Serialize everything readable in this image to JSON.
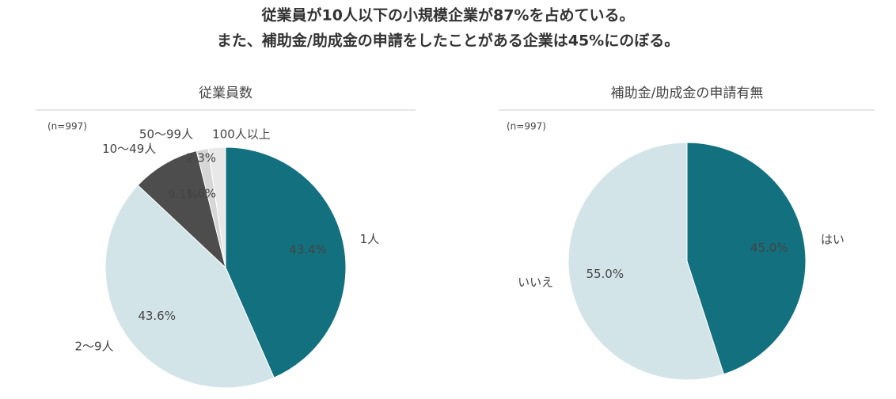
{
  "title": [
    "従業員が10人以下の小規模企業が87%を占めている。",
    "また、補助金/助成金の申請をしたことがある企業は45%にのぼる。"
  ],
  "chart_data": [
    {
      "type": "pie",
      "title": "従業員数",
      "note": "(n=997)",
      "categories": [
        "1人",
        "2〜9人",
        "10〜49人",
        "50〜99人",
        "100人以上"
      ],
      "values": [
        43.4,
        43.6,
        9.1,
        1.6,
        2.3
      ],
      "value_labels": [
        "43.4%",
        "43.6%",
        "9.1%",
        "1.6%",
        "2.3%"
      ],
      "colors": [
        "#13707f",
        "#d3e4e8",
        "#4d4d4d",
        "#d6d6d6",
        "#e8e8e8"
      ]
    },
    {
      "type": "pie",
      "title": "補助金/助成金の申請有無",
      "note": "(n=997)",
      "categories": [
        "はい",
        "いいえ"
      ],
      "values": [
        45.0,
        55.0
      ],
      "value_labels": [
        "45.0%",
        "55.0%"
      ],
      "colors": [
        "#13707f",
        "#d3e4e8"
      ]
    }
  ]
}
